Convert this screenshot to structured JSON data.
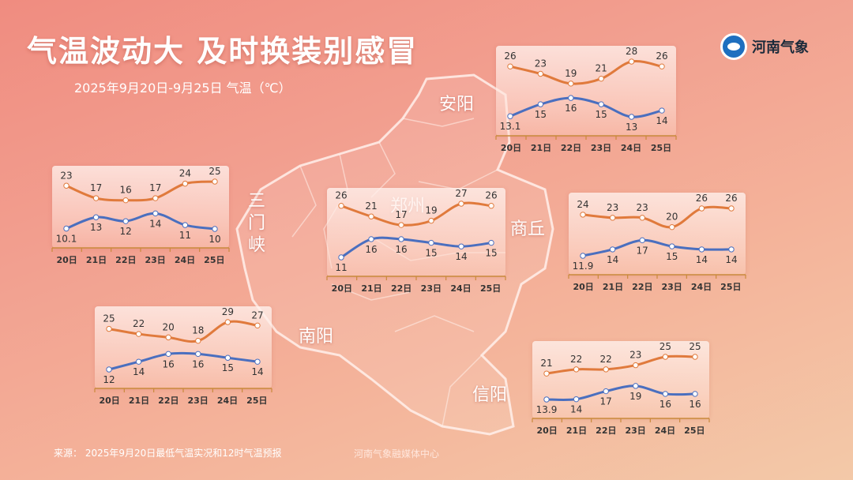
{
  "header": {
    "title": "气温波动大 及时换装别感冒",
    "subtitle": "2025年9月20日-9月25日 气温（℃）",
    "logo_text": "河南气象"
  },
  "footer": {
    "source": "来源： 2025年9月20日最低气温实况和12时气温预报",
    "credit": "河南气象融媒体中心"
  },
  "colors": {
    "high_line": "#e07a3c",
    "low_line": "#4a6fbf",
    "axis": "#c98a3c",
    "label": "#333333"
  },
  "chart_data": [
    {
      "type": "line",
      "city": "安阳",
      "categories": [
        "20日",
        "21日",
        "22日",
        "23日",
        "24日",
        "25日"
      ],
      "series": [
        {
          "values": [
            26,
            23,
            19,
            21,
            28,
            26
          ]
        },
        {
          "values": [
            13.1,
            15,
            16,
            15,
            13,
            14
          ]
        }
      ]
    },
    {
      "type": "line",
      "city": "三门峡",
      "categories": [
        "20日",
        "21日",
        "22日",
        "23日",
        "24日",
        "25日"
      ],
      "series": [
        {
          "values": [
            23,
            17,
            16,
            17,
            24,
            25
          ]
        },
        {
          "values": [
            10.1,
            13,
            12,
            14,
            11,
            10
          ]
        }
      ]
    },
    {
      "type": "line",
      "city": "郑州",
      "categories": [
        "20日",
        "21日",
        "22日",
        "23日",
        "24日",
        "25日"
      ],
      "series": [
        {
          "values": [
            26,
            21,
            17,
            19,
            27,
            26
          ]
        },
        {
          "values": [
            11,
            16,
            16,
            15,
            14,
            15
          ]
        }
      ]
    },
    {
      "type": "line",
      "city": "商丘",
      "categories": [
        "20日",
        "21日",
        "22日",
        "23日",
        "24日",
        "25日"
      ],
      "series": [
        {
          "values": [
            24,
            23,
            23,
            20,
            26,
            26
          ]
        },
        {
          "values": [
            11.9,
            14,
            17,
            15,
            14,
            14
          ]
        }
      ]
    },
    {
      "type": "line",
      "city": "南阳",
      "categories": [
        "20日",
        "21日",
        "22日",
        "23日",
        "24日",
        "25日"
      ],
      "series": [
        {
          "values": [
            25,
            22,
            20,
            18,
            29,
            27
          ]
        },
        {
          "values": [
            12,
            14,
            16,
            16,
            15,
            14
          ]
        }
      ]
    },
    {
      "type": "line",
      "city": "信阳",
      "categories": [
        "20日",
        "21日",
        "22日",
        "23日",
        "24日",
        "25日"
      ],
      "series": [
        {
          "values": [
            21,
            22,
            22,
            23,
            25,
            25
          ]
        },
        {
          "values": [
            13.9,
            14,
            17,
            19,
            16,
            16
          ]
        }
      ]
    }
  ]
}
